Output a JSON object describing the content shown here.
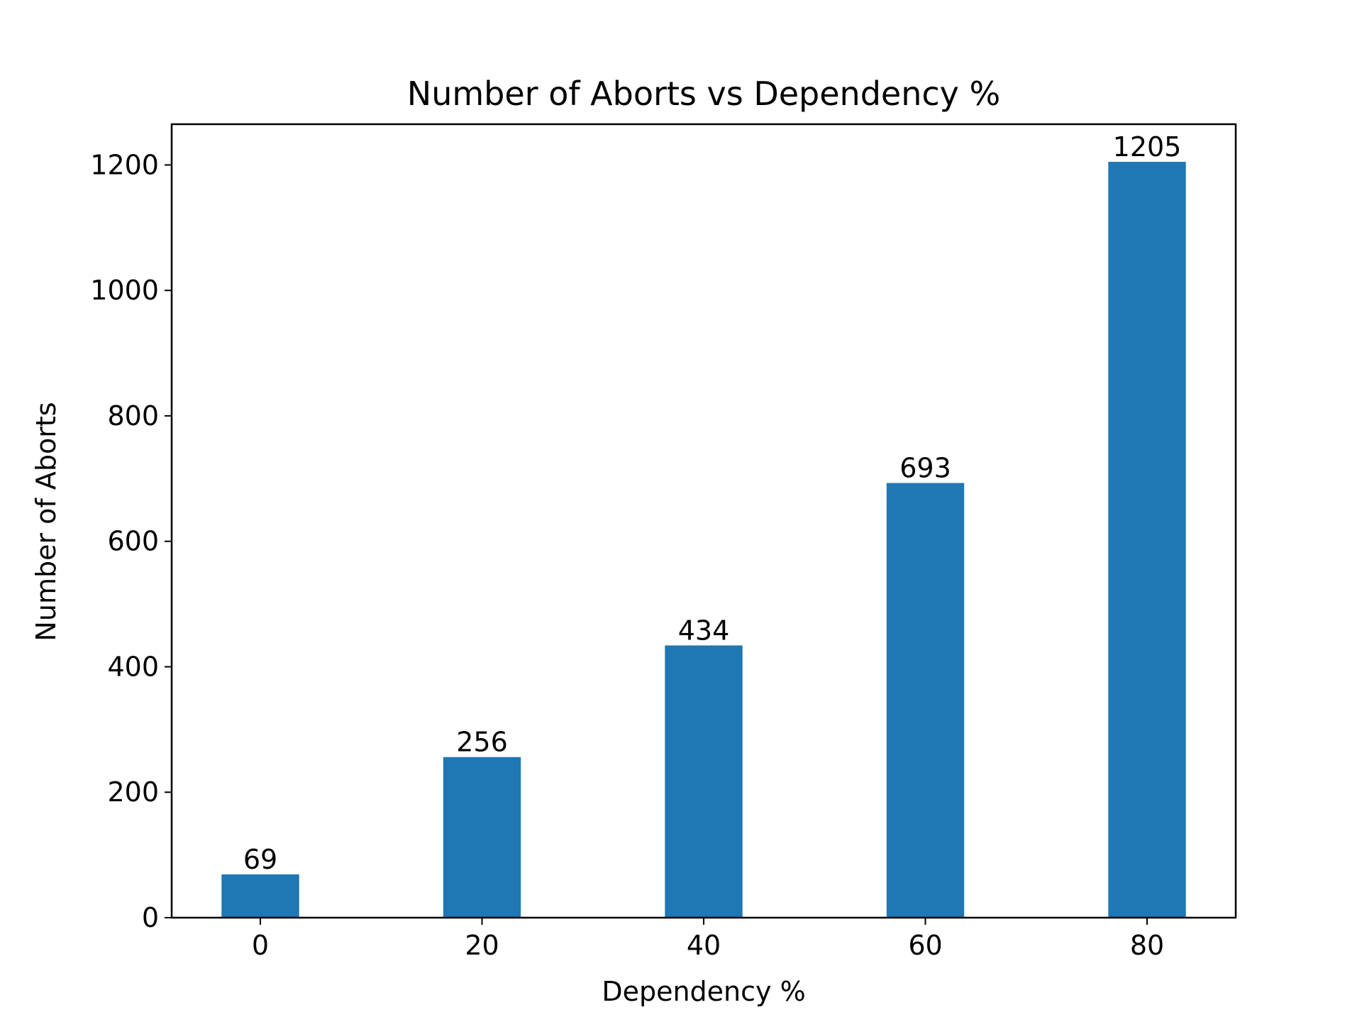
{
  "chart_data": {
    "type": "bar",
    "title": "Number of Aborts vs Dependency %",
    "xlabel": "Dependency %",
    "ylabel": "Number of Aborts",
    "categories": [
      "0",
      "20",
      "40",
      "60",
      "80"
    ],
    "x": [
      0,
      20,
      40,
      60,
      80
    ],
    "values": [
      69,
      256,
      434,
      693,
      1205
    ],
    "data_labels": [
      "69",
      "256",
      "434",
      "693",
      "1205"
    ],
    "bar_width": 7,
    "xlim": [
      -8,
      88
    ],
    "ylim": [
      0,
      1265
    ],
    "yticks": [
      0,
      200,
      400,
      600,
      800,
      1000,
      1200
    ],
    "ytick_labels": [
      "0",
      "200",
      "400",
      "600",
      "800",
      "1000",
      "1200"
    ],
    "xticks": [
      0,
      20,
      40,
      60,
      80
    ],
    "xtick_labels": [
      "0",
      "20",
      "40",
      "60",
      "80"
    ],
    "grid": false,
    "legend": "none",
    "colors": {
      "bar": "#1f77b4",
      "axis": "#000000",
      "text": "#000000",
      "background": "#ffffff"
    }
  }
}
